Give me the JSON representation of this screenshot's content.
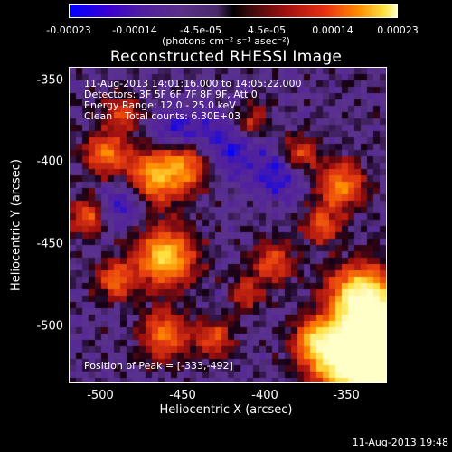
{
  "colorbar": {
    "ticks": [
      "-0.00023",
      "-0.00014",
      "-4.5e-05",
      "4.5e-05",
      "0.00014",
      "0.00023"
    ],
    "units": "(photons cm⁻² s⁻¹ asec⁻²)"
  },
  "image": {
    "title": "Reconstructed RHESSI Image",
    "annotations": {
      "time": "11-Aug-2013 14:01:16.000 to 14:05:22.000",
      "detectors": "Detectors: 3F 5F 6F 7F 8F 9F, Att 0",
      "energy": "Energy Range: 12.0 - 25.0 keV",
      "clean": "Clean    Total counts: 6.30E+03",
      "peak": "Position of Peak = [-333,-492]"
    },
    "xlabel": "Heliocentric X (arcsec)",
    "ylabel": "Heliocentric Y (arcsec)",
    "xticks": [
      "-500",
      "-450",
      "-400",
      "-350"
    ],
    "yticks": [
      "-350",
      "-400",
      "-450",
      "-500"
    ],
    "xlim": [
      -519,
      -320
    ],
    "ylim": [
      -535,
      -336
    ],
    "colormap": [
      "#0000ff",
      "#4f1fa0",
      "#000000",
      "#a01010",
      "#ff8a00",
      "#ffffc0"
    ]
  },
  "timestamp": "11-Aug-2013 19:48"
}
